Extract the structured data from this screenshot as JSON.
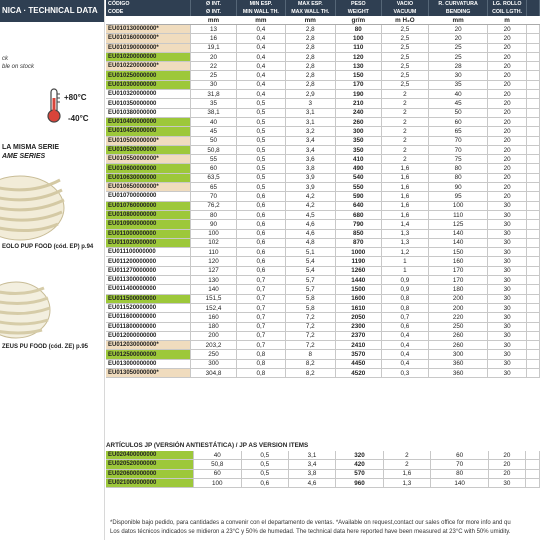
{
  "left": {
    "header": "NICA · TECHNICAL DATA",
    "stock_line1": "ck",
    "stock_line2": "ble on stock",
    "temp_max": "+80°C",
    "temp_min": "-40°C",
    "serie_line1": "LA MISMA SERIE",
    "serie_line2": "AME SERIES",
    "caption1": "EOLO PUP FOOD (cód. EP) p.94",
    "caption2": "ZEUS PU FOOD (cód. ZE) p.95"
  },
  "table": {
    "headers_es": [
      "CÓDIGO",
      "Ø INT.",
      "MIN ESP.",
      "MAX ESP.",
      "PESO",
      "VACIO",
      "R. CURVATURA",
      "LG. ROLLO"
    ],
    "headers_en": [
      "CODE",
      "Ø INT.",
      "MIN WALL TH.",
      "MAX WALL TH.",
      "WEIGHT",
      "VACUUM",
      "BENDING",
      "COIL LGTH."
    ],
    "units": [
      "",
      "mm",
      "mm",
      "mm",
      "gr/m",
      "m H₂O",
      "mm",
      "m"
    ],
    "rows": [
      [
        "EU010130000000*",
        "13",
        "0,4",
        "2,8",
        "80",
        "2,5",
        "20",
        "20",
        "b"
      ],
      [
        "EU010160000000*",
        "16",
        "0,4",
        "2,8",
        "100",
        "2,5",
        "20",
        "20",
        "b"
      ],
      [
        "EU010190000000*",
        "19,1",
        "0,4",
        "2,8",
        "110",
        "2,5",
        "25",
        "20",
        "b"
      ],
      [
        "EU010200000000",
        "20",
        "0,4",
        "2,8",
        "120",
        "2,5",
        "25",
        "20",
        "g"
      ],
      [
        "EU010220000000*",
        "22",
        "0,4",
        "2,8",
        "130",
        "2,5",
        "28",
        "20",
        "b"
      ],
      [
        "EU010250000000",
        "25",
        "0,4",
        "2,8",
        "150",
        "2,5",
        "30",
        "20",
        "g"
      ],
      [
        "EU010300000000",
        "30",
        "0,4",
        "2,8",
        "170",
        "2,5",
        "35",
        "20",
        "g"
      ],
      [
        "EU010320000000",
        "31,8",
        "0,4",
        "2,9",
        "190",
        "2",
        "40",
        "20",
        ""
      ],
      [
        "EU010350000000",
        "35",
        "0,5",
        "3",
        "210",
        "2",
        "45",
        "20",
        ""
      ],
      [
        "EU010380000000",
        "38,1",
        "0,5",
        "3,1",
        "240",
        "2",
        "50",
        "20",
        ""
      ],
      [
        "EU010400000000",
        "40",
        "0,5",
        "3,1",
        "260",
        "2",
        "60",
        "20",
        "g"
      ],
      [
        "EU010450000000",
        "45",
        "0,5",
        "3,2",
        "300",
        "2",
        "65",
        "20",
        "g"
      ],
      [
        "EU010500000000*",
        "50",
        "0,5",
        "3,4",
        "350",
        "2",
        "70",
        "20",
        "b"
      ],
      [
        "EU010520000000",
        "50,8",
        "0,5",
        "3,4",
        "350",
        "2",
        "70",
        "20",
        "g"
      ],
      [
        "EU010550000000*",
        "55",
        "0,5",
        "3,6",
        "410",
        "2",
        "75",
        "20",
        "b"
      ],
      [
        "EU010600000000",
        "60",
        "0,5",
        "3,8",
        "490",
        "1,6",
        "80",
        "20",
        "g"
      ],
      [
        "EU010630000000",
        "63,5",
        "0,5",
        "3,9",
        "540",
        "1,6",
        "80",
        "20",
        "g"
      ],
      [
        "EU010650000000*",
        "65",
        "0,5",
        "3,9",
        "550",
        "1,6",
        "90",
        "20",
        "b"
      ],
      [
        "EU010700000000",
        "70",
        "0,6",
        "4,2",
        "590",
        "1,6",
        "95",
        "20",
        ""
      ],
      [
        "EU010760000000",
        "76,2",
        "0,6",
        "4,2",
        "640",
        "1,6",
        "100",
        "30",
        "g"
      ],
      [
        "EU010800000000",
        "80",
        "0,6",
        "4,5",
        "680",
        "1,6",
        "110",
        "30",
        "g"
      ],
      [
        "EU010900000000",
        "90",
        "0,6",
        "4,6",
        "790",
        "1,4",
        "125",
        "30",
        "g"
      ],
      [
        "EU011000000000",
        "100",
        "0,6",
        "4,6",
        "850",
        "1,3",
        "140",
        "30",
        "g"
      ],
      [
        "EU011020000000",
        "102",
        "0,6",
        "4,8",
        "870",
        "1,3",
        "140",
        "30",
        "g"
      ],
      [
        "EU011100000000",
        "110",
        "0,6",
        "5,1",
        "1000",
        "1,2",
        "150",
        "30",
        ""
      ],
      [
        "EU011200000000",
        "120",
        "0,6",
        "5,4",
        "1190",
        "1",
        "160",
        "30",
        ""
      ],
      [
        "EU011270000000",
        "127",
        "0,6",
        "5,4",
        "1260",
        "1",
        "170",
        "30",
        ""
      ],
      [
        "EU011300000000",
        "130",
        "0,7",
        "5,7",
        "1440",
        "0,9",
        "170",
        "30",
        ""
      ],
      [
        "EU011400000000",
        "140",
        "0,7",
        "5,7",
        "1500",
        "0,9",
        "180",
        "30",
        ""
      ],
      [
        "EU011500000000",
        "151,5",
        "0,7",
        "5,8",
        "1600",
        "0,8",
        "200",
        "30",
        "g"
      ],
      [
        "EU011520000000",
        "152,4",
        "0,7",
        "5,8",
        "1610",
        "0,8",
        "200",
        "30",
        ""
      ],
      [
        "EU011600000000",
        "160",
        "0,7",
        "7,2",
        "2050",
        "0,7",
        "220",
        "30",
        ""
      ],
      [
        "EU011800000000",
        "180",
        "0,7",
        "7,2",
        "2300",
        "0,6",
        "250",
        "30",
        ""
      ],
      [
        "EU012000000000",
        "200",
        "0,7",
        "7,2",
        "2370",
        "0,4",
        "260",
        "30",
        ""
      ],
      [
        "EU012030000000*",
        "203,2",
        "0,7",
        "7,2",
        "2410",
        "0,4",
        "260",
        "30",
        "b"
      ],
      [
        "EU012500000000",
        "250",
        "0,8",
        "8",
        "3570",
        "0,4",
        "300",
        "30",
        "g"
      ],
      [
        "EU013000000000",
        "300",
        "0,8",
        "8,2",
        "4450",
        "0,4",
        "360",
        "30",
        ""
      ],
      [
        "EU013050000000*",
        "304,8",
        "0,8",
        "8,2",
        "4520",
        "0,3",
        "360",
        "30",
        "b"
      ]
    ]
  },
  "jp": {
    "title": "ARTÍCULOS JP (VERSIÓN ANTIESTÁTICA) / JP AS VERSION ITEMS",
    "rows": [
      [
        "EU020400000000",
        "40",
        "0,5",
        "3,1",
        "320",
        "2",
        "60",
        "20",
        "g"
      ],
      [
        "EU020520000000",
        "50,8",
        "0,5",
        "3,4",
        "420",
        "2",
        "70",
        "20",
        "g"
      ],
      [
        "EU020600000000",
        "60",
        "0,5",
        "3,8",
        "570",
        "1,6",
        "80",
        "20",
        "g"
      ],
      [
        "EU021000000000",
        "100",
        "0,6",
        "4,6",
        "960",
        "1,3",
        "140",
        "30",
        "g"
      ]
    ]
  },
  "footer": {
    "line1": "*Disponible bajo pedido, para cantidades a convenir con el departamento de ventas. *Available on request,contact our sales office for more info and qu",
    "line2": "Los datos técnicos indicados se midieron a 23°C y 50% de humedad. The technical data here reported have been measured at 23°C with 50% umidity."
  },
  "colors": {
    "header_bg": "#2f3f52",
    "stock_green": "#9dc83a",
    "request_beige": "#f0dcbe"
  }
}
